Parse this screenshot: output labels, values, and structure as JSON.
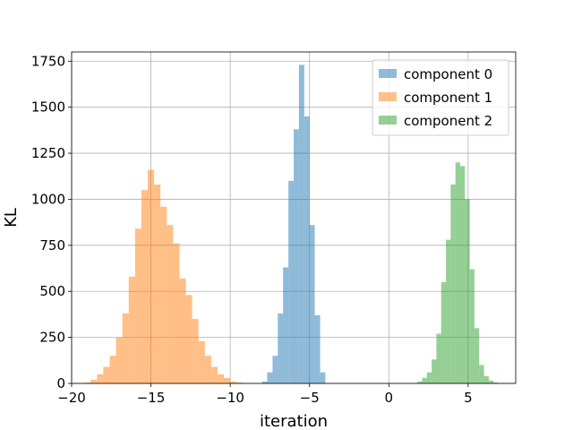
{
  "chart_data": {
    "type": "bar",
    "title": "",
    "xlabel": "iteration",
    "ylabel": "KL",
    "xlim": [
      -20,
      8
    ],
    "ylim": [
      0,
      1800
    ],
    "xticks": [
      -20,
      -15,
      -10,
      -5,
      0,
      5
    ],
    "yticks": [
      0,
      250,
      500,
      750,
      1000,
      1250,
      1500,
      1750
    ],
    "grid": true,
    "legend_position": "top-right",
    "series": [
      {
        "name": "component 0",
        "color": "#1f77b4",
        "bin_edges": [
          -8.0,
          -7.67,
          -7.33,
          -7.0,
          -6.67,
          -6.33,
          -6.0,
          -5.67,
          -5.33,
          -5.0,
          -4.67,
          -4.33,
          -4.0
        ],
        "values": [
          10,
          60,
          150,
          380,
          630,
          1100,
          1380,
          1730,
          1450,
          860,
          370,
          60
        ]
      },
      {
        "name": "component 1",
        "color": "#ff7f0e",
        "bin_edges": [
          -19.2,
          -18.8,
          -18.4,
          -18.0,
          -17.6,
          -17.2,
          -16.8,
          -16.4,
          -16.0,
          -15.6,
          -15.2,
          -14.8,
          -14.4,
          -14.0,
          -13.6,
          -13.2,
          -12.8,
          -12.4,
          -12.0,
          -11.6,
          -11.2,
          -10.8,
          -10.4,
          -10.0,
          -9.6,
          -9.2
        ],
        "values": [
          5,
          20,
          50,
          90,
          150,
          250,
          380,
          580,
          840,
          1050,
          1160,
          1080,
          960,
          860,
          760,
          570,
          480,
          350,
          230,
          150,
          90,
          50,
          30,
          10,
          5
        ]
      },
      {
        "name": "component 2",
        "color": "#2ca02c",
        "bin_edges": [
          1.8,
          2.1,
          2.4,
          2.7,
          3.0,
          3.3,
          3.6,
          3.9,
          4.2,
          4.5,
          4.8,
          5.1,
          5.4,
          5.7,
          6.0,
          6.3,
          6.6,
          6.9
        ],
        "values": [
          10,
          30,
          60,
          130,
          270,
          550,
          780,
          1080,
          1200,
          1180,
          1000,
          620,
          300,
          100,
          40,
          15,
          5
        ]
      }
    ]
  }
}
